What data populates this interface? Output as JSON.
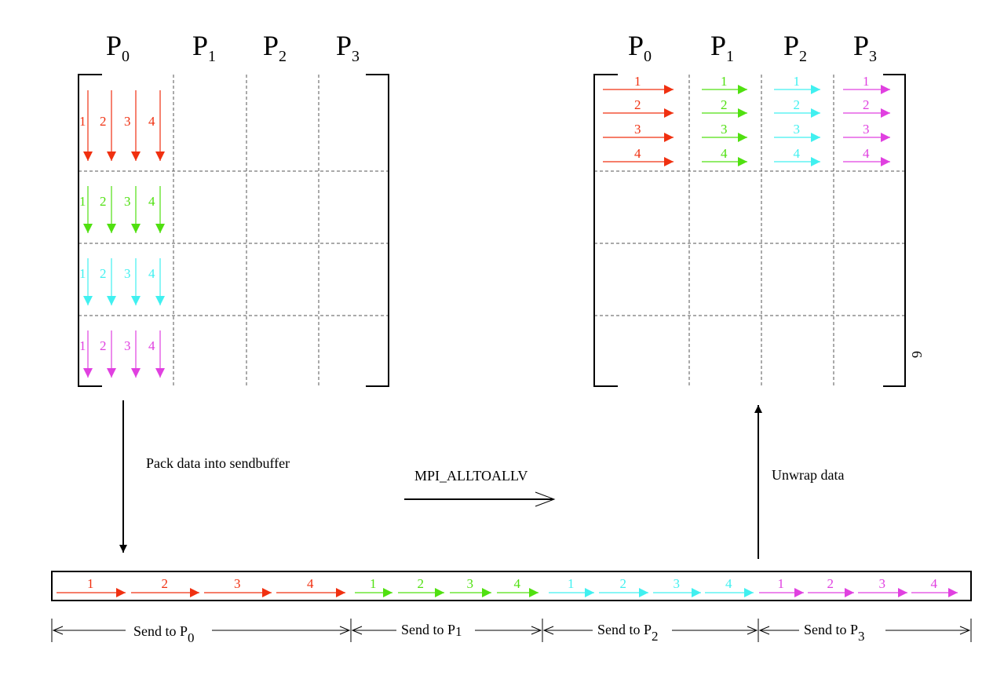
{
  "colors": {
    "block1": "#f03010",
    "block2": "#50e010",
    "block3": "#40f0f0",
    "block4": "#e040e0"
  },
  "left_matrix": {
    "headers": [
      {
        "base": "P",
        "sub": "0"
      },
      {
        "base": "P",
        "sub": "1"
      },
      {
        "base": "P",
        "sub": "2"
      },
      {
        "base": "P",
        "sub": "3"
      }
    ],
    "arrow_numbers": [
      "1",
      "2",
      "3",
      "4"
    ]
  },
  "right_matrix": {
    "headers": [
      {
        "base": "P",
        "sub": "0"
      },
      {
        "base": "P",
        "sub": "1"
      },
      {
        "base": "P",
        "sub": "2"
      },
      {
        "base": "P",
        "sub": "3"
      }
    ],
    "arrow_numbers": [
      "1",
      "2",
      "3",
      "4"
    ],
    "side_mark": "6"
  },
  "steps": {
    "pack": "Pack data into sendbuffer",
    "alltoall": "MPI_ALLTOALLV",
    "unwrap": "Unwrap data"
  },
  "buffer": {
    "arrow_numbers": [
      "1",
      "2",
      "3",
      "4"
    ]
  },
  "send_labels": [
    {
      "text": "Send to P",
      "sub": "0"
    },
    {
      "text": "Send to P",
      "sub": "1"
    },
    {
      "text": "Send to P",
      "sub": "2"
    },
    {
      "text": "Send to P",
      "sub": "3"
    }
  ]
}
